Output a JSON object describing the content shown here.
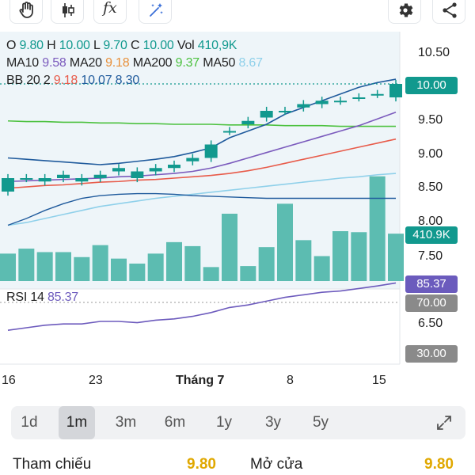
{
  "toolbar": {
    "icons": [
      "hand-icon",
      "candlestick-icon",
      "function-icon",
      "magic-wand-icon",
      "gear-icon",
      "share-icon"
    ],
    "function_label": "fx"
  },
  "legend": {
    "ohlc": {
      "o_label": "O",
      "o": "9.80",
      "h_label": "H",
      "h": "10.00",
      "l_label": "L",
      "l": "9.70",
      "c_label": "C",
      "c": "10.00",
      "vol_label": "Vol",
      "vol": "410,9K"
    },
    "ma": {
      "ma10_label": "MA10",
      "ma10": "9.58",
      "ma20_label": "MA20",
      "ma20": "9.18",
      "ma200_label": "MA200",
      "ma200": "9.37",
      "ma50_label": "MA50",
      "ma50": "8.67"
    },
    "bb": {
      "label": "BB 20 2",
      "v1": "9.18",
      "v2": "10.07",
      "v3": "8.30"
    },
    "rsi": {
      "label": "RSI 14",
      "value": "85.37"
    }
  },
  "price_axis": [
    "10.50",
    "9.50",
    "9.00",
    "8.50",
    "8.00",
    "7.50",
    "6.50"
  ],
  "tags": {
    "price": "10.00",
    "volume": "410.9K",
    "rsi": "85.37",
    "rsi_upper": "70.00",
    "rsi_lower": "30.00"
  },
  "x_axis": [
    "16",
    "23",
    "Tháng 7",
    "8",
    "15"
  ],
  "periods": {
    "items": [
      "1d",
      "1m",
      "3m",
      "6m",
      "1y",
      "3y",
      "5y"
    ],
    "active": "1m"
  },
  "stats": {
    "reference_label": "Tham chiếu",
    "reference_value": "9.80",
    "open_label": "Mở cửa",
    "open_value": "9.80"
  },
  "colors": {
    "up": "#11998e",
    "down": "#11998e",
    "ma10": "#7b5bbd",
    "ma20": "#e8903a",
    "ma200": "#4cc13f",
    "ma50": "#8fd0ea",
    "bb_upper": "#1f5a9c",
    "bb_mid": "#e85b4a",
    "volume": "#5cbcb1",
    "rsi": "#6d5bbd",
    "tag_green": "#11998e",
    "tag_purple": "#6b5bbd",
    "tag_gray": "#8a8a8a",
    "accent_yellow": "#e0a800"
  },
  "chart_data": {
    "type": "candlestick",
    "x": [
      "16",
      "17",
      "18",
      "19",
      "20",
      "23",
      "24",
      "25",
      "26",
      "27",
      "30",
      "1",
      "2",
      "3",
      "4",
      "7",
      "8",
      "9",
      "10",
      "11",
      "14",
      "15"
    ],
    "open": [
      8.4,
      8.6,
      8.6,
      8.6,
      8.6,
      8.6,
      8.75,
      8.6,
      8.7,
      8.75,
      8.85,
      8.9,
      9.3,
      9.4,
      9.5,
      9.6,
      9.65,
      9.7,
      9.75,
      9.8,
      9.85,
      9.8
    ],
    "close": [
      8.6,
      8.6,
      8.55,
      8.65,
      8.55,
      8.65,
      8.7,
      8.7,
      8.75,
      8.8,
      8.9,
      9.1,
      9.3,
      9.45,
      9.6,
      9.6,
      9.7,
      9.75,
      9.75,
      9.8,
      9.85,
      10.0
    ],
    "volume": [
      0.55,
      0.65,
      0.58,
      0.58,
      0.48,
      0.72,
      0.45,
      0.35,
      0.55,
      0.78,
      0.7,
      0.28,
      1.35,
      0.3,
      0.68,
      1.55,
      0.82,
      0.5,
      1.0,
      0.98,
      2.1,
      0.95
    ],
    "ma10": [
      8.55,
      8.56,
      8.57,
      8.58,
      8.59,
      8.6,
      8.62,
      8.63,
      8.65,
      8.67,
      8.7,
      8.75,
      8.82,
      8.9,
      8.98,
      9.06,
      9.14,
      9.22,
      9.3,
      9.38,
      9.48,
      9.58
    ],
    "ma20": [
      8.45,
      8.47,
      8.49,
      8.5,
      8.52,
      8.54,
      8.55,
      8.57,
      8.58,
      8.6,
      8.62,
      8.64,
      8.67,
      8.71,
      8.76,
      8.82,
      8.88,
      8.94,
      9.0,
      9.06,
      9.12,
      9.18
    ],
    "ma200": [
      9.45,
      9.44,
      9.44,
      9.43,
      9.43,
      9.42,
      9.42,
      9.41,
      9.41,
      9.4,
      9.4,
      9.4,
      9.39,
      9.39,
      9.39,
      9.38,
      9.38,
      9.38,
      9.37,
      9.37,
      9.37,
      9.37
    ],
    "ma50": [
      7.9,
      7.94,
      8.0,
      8.06,
      8.12,
      8.18,
      8.22,
      8.26,
      8.3,
      8.33,
      8.36,
      8.39,
      8.42,
      8.45,
      8.48,
      8.51,
      8.54,
      8.57,
      8.6,
      8.62,
      8.65,
      8.67
    ],
    "bb_upper": [
      8.9,
      8.88,
      8.86,
      8.84,
      8.82,
      8.8,
      8.82,
      8.85,
      8.88,
      8.92,
      8.98,
      9.05,
      9.2,
      9.3,
      9.4,
      9.55,
      9.65,
      9.75,
      9.85,
      9.95,
      10.02,
      10.07
    ],
    "bb_lower": [
      7.9,
      8.0,
      8.12,
      8.22,
      8.3,
      8.34,
      8.36,
      8.37,
      8.37,
      8.36,
      8.34,
      8.33,
      8.32,
      8.31,
      8.3,
      8.3,
      8.3,
      8.3,
      8.3,
      8.3,
      8.3,
      8.3
    ],
    "rsi": [
      48,
      50,
      52,
      53,
      53,
      55,
      55,
      54,
      56,
      57,
      59,
      62,
      66,
      68,
      71,
      74,
      76,
      78,
      79,
      81,
      83,
      85.37
    ],
    "ylim": [
      6.2,
      10.75
    ],
    "rsi_levels": [
      70,
      30
    ]
  }
}
